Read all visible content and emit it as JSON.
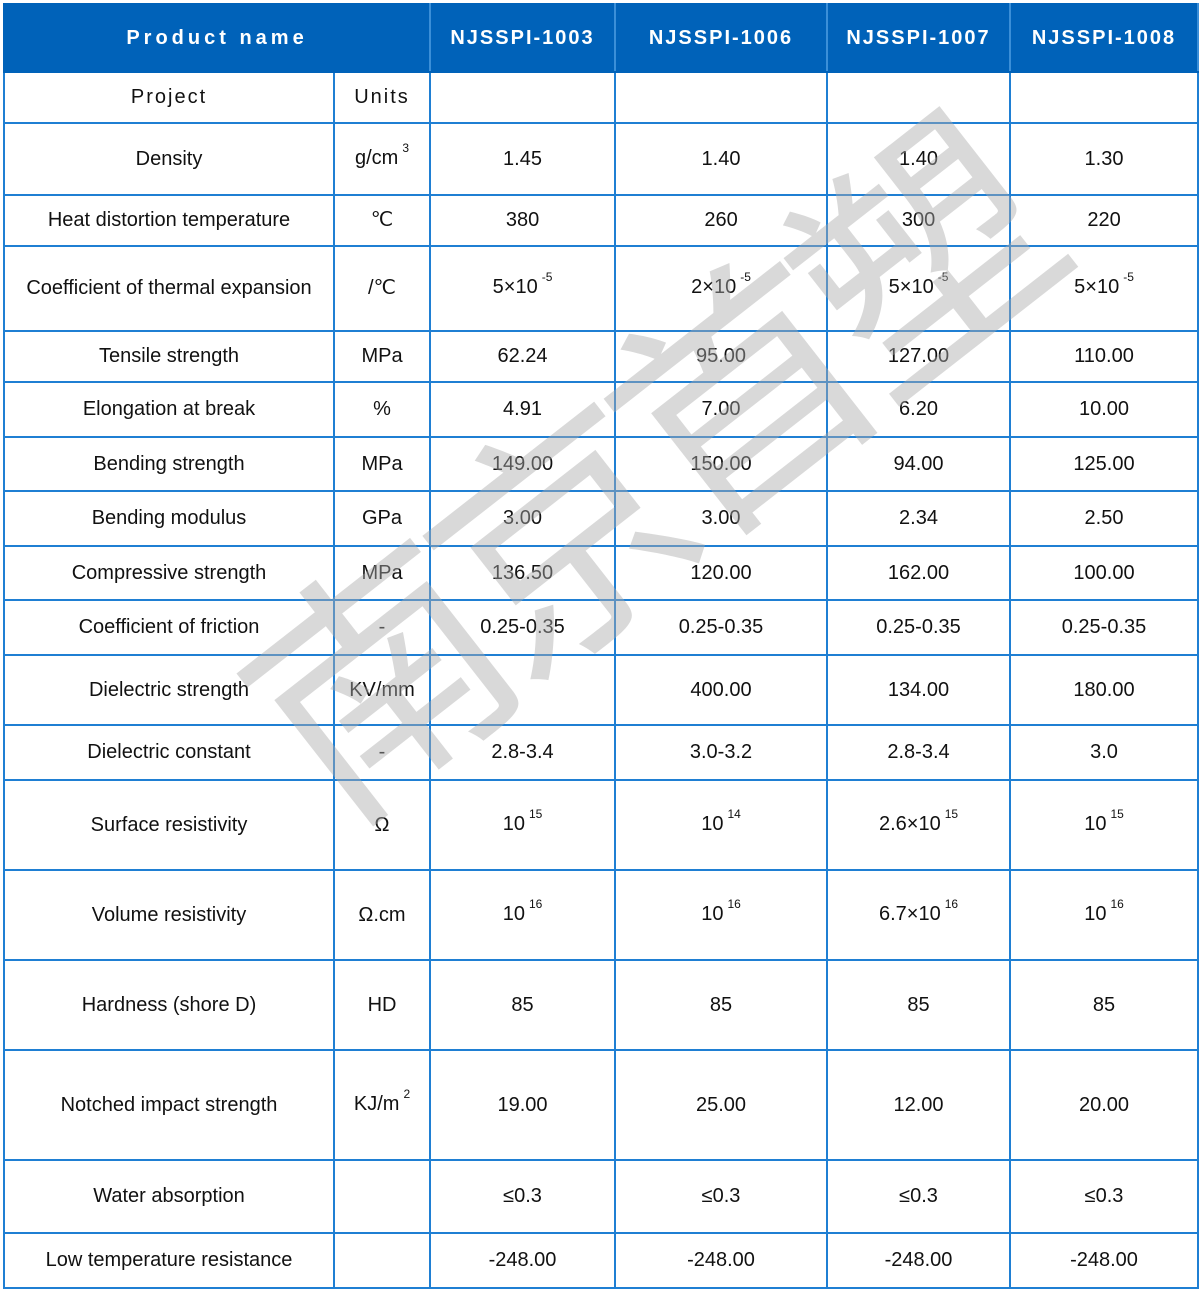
{
  "header": {
    "product_name_label": "Product name",
    "products": [
      "NJSSPI-1003",
      "NJSSPI-1006",
      "NJSSPI-1007",
      "NJSSPI-1008"
    ],
    "project_label": "Project",
    "units_label": "Units"
  },
  "colors": {
    "header_bg": "#0062b9",
    "border": "#1f7fd3"
  },
  "watermark": "南京首塑",
  "rows": [
    {
      "project": "Density",
      "unit": {
        "t": "g/cm",
        "s": "3"
      },
      "values": [
        {
          "t": "1.45"
        },
        {
          "t": "1.40"
        },
        {
          "t": "1.40"
        },
        {
          "t": "1.30"
        }
      ]
    },
    {
      "project": "Heat distortion temperature",
      "unit": {
        "t": "℃"
      },
      "values": [
        {
          "t": "380"
        },
        {
          "t": "260"
        },
        {
          "t": "300"
        },
        {
          "t": "220"
        }
      ]
    },
    {
      "project": "Coefficient of thermal expansion",
      "unit": {
        "t": "/℃"
      },
      "values": [
        {
          "t": "5×10",
          "s": "-5"
        },
        {
          "t": "2×10",
          "s": "-5"
        },
        {
          "t": "5×10",
          "s": "-5"
        },
        {
          "t": "5×10",
          "s": "-5"
        }
      ]
    },
    {
      "project": "Tensile strength",
      "unit": {
        "t": "MPa"
      },
      "values": [
        {
          "t": "62.24"
        },
        {
          "t": "95.00"
        },
        {
          "t": "127.00"
        },
        {
          "t": "110.00"
        }
      ]
    },
    {
      "project": "Elongation at break",
      "unit": {
        "t": "%"
      },
      "values": [
        {
          "t": "4.91"
        },
        {
          "t": "7.00"
        },
        {
          "t": "6.20"
        },
        {
          "t": "10.00"
        }
      ]
    },
    {
      "project": "Bending strength",
      "unit": {
        "t": "MPa"
      },
      "values": [
        {
          "t": "149.00"
        },
        {
          "t": "150.00"
        },
        {
          "t": "94.00"
        },
        {
          "t": "125.00"
        }
      ]
    },
    {
      "project": "Bending modulus",
      "unit": {
        "t": "GPa"
      },
      "values": [
        {
          "t": "3.00"
        },
        {
          "t": "3.00"
        },
        {
          "t": "2.34"
        },
        {
          "t": "2.50"
        }
      ]
    },
    {
      "project": "Compressive strength",
      "unit": {
        "t": "MPa"
      },
      "values": [
        {
          "t": "136.50"
        },
        {
          "t": "120.00"
        },
        {
          "t": "162.00"
        },
        {
          "t": "100.00"
        }
      ]
    },
    {
      "project": "Coefficient of friction",
      "unit": {
        "t": "-"
      },
      "values": [
        {
          "t": "0.25-0.35"
        },
        {
          "t": "0.25-0.35"
        },
        {
          "t": "0.25-0.35"
        },
        {
          "t": "0.25-0.35"
        }
      ]
    },
    {
      "project": "Dielectric strength",
      "unit": {
        "t": "KV/mm"
      },
      "values": [
        {
          "t": ""
        },
        {
          "t": "400.00"
        },
        {
          "t": "134.00"
        },
        {
          "t": "180.00"
        }
      ]
    },
    {
      "project": "Dielectric constant",
      "unit": {
        "t": "-"
      },
      "values": [
        {
          "t": "2.8-3.4"
        },
        {
          "t": "3.0-3.2"
        },
        {
          "t": "2.8-3.4"
        },
        {
          "t": "3.0"
        }
      ]
    },
    {
      "project": "Surface resistivity",
      "unit": {
        "t": "Ω"
      },
      "values": [
        {
          "t": "10",
          "s": "15"
        },
        {
          "t": "10",
          "s": "14"
        },
        {
          "t": "2.6×10",
          "s": "15"
        },
        {
          "t": "10",
          "s": "15"
        }
      ]
    },
    {
      "project": "Volume resistivity",
      "unit": {
        "t": "Ω.cm"
      },
      "values": [
        {
          "t": "10",
          "s": "16"
        },
        {
          "t": "10",
          "s": "16"
        },
        {
          "t": "6.7×10",
          "s": "16"
        },
        {
          "t": "10",
          "s": "16"
        }
      ]
    },
    {
      "project": "Hardness (shore D)",
      "unit": {
        "t": "HD"
      },
      "values": [
        {
          "t": "85"
        },
        {
          "t": "85"
        },
        {
          "t": "85"
        },
        {
          "t": "85"
        }
      ]
    },
    {
      "project": "Notched impact strength",
      "unit": {
        "t": "KJ/m",
        "s": "2"
      },
      "values": [
        {
          "t": "19.00"
        },
        {
          "t": "25.00"
        },
        {
          "t": "12.00"
        },
        {
          "t": "20.00"
        }
      ]
    },
    {
      "project": "Water absorption",
      "unit": {
        "t": ""
      },
      "values": [
        {
          "t": "≤0.3"
        },
        {
          "t": "≤0.3"
        },
        {
          "t": "≤0.3"
        },
        {
          "t": "≤0.3"
        }
      ]
    },
    {
      "project": "Low temperature resistance",
      "unit": {
        "t": ""
      },
      "values": [
        {
          "t": "-248.00"
        },
        {
          "t": "-248.00"
        },
        {
          "t": "-248.00"
        },
        {
          "t": "-248.00"
        }
      ]
    }
  ]
}
